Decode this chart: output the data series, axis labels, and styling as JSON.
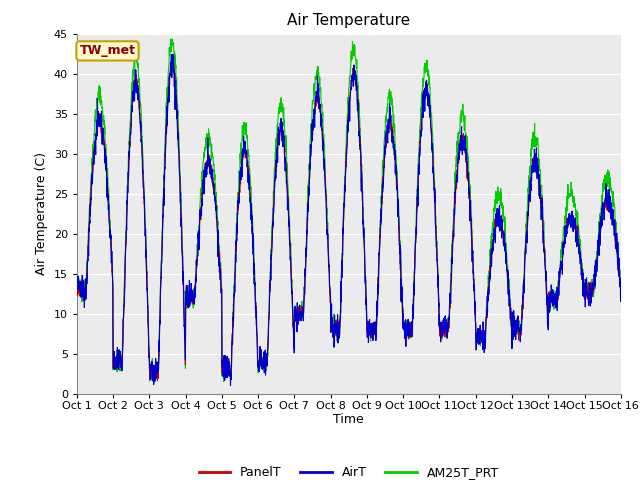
{
  "title": "Air Temperature",
  "xlabel": "Time",
  "ylabel": "Air Temperature (C)",
  "ylim": [
    0,
    45
  ],
  "xlim": [
    0,
    15
  ],
  "annotation_label": "TW_met",
  "annotation_color": "#8B0000",
  "annotation_bg": "#FFFACD",
  "annotation_border": "#C8A000",
  "legend_labels": [
    "PanelT",
    "AirT",
    "AM25T_PRT"
  ],
  "legend_colors": [
    "#CC0000",
    "#0000CC",
    "#00CC00"
  ],
  "tick_labels": [
    "Oct 1",
    "Oct 2",
    "Oct 3",
    "Oct 4",
    "Oct 5",
    "Oct 6",
    "Oct 7",
    "Oct 8",
    "Oct 9",
    "Oct 10",
    "Oct 11",
    "Oct 12",
    "Oct 13",
    "Oct 14",
    "Oct 15",
    "Oct 16"
  ],
  "plot_bg_color": "#EBEBEB",
  "grid_color": "#FFFFFF",
  "num_points_per_day": 144,
  "base_mins": [
    13,
    4,
    3,
    12,
    3,
    4,
    10,
    8,
    8,
    8,
    8,
    7,
    8,
    12,
    13,
    15
  ],
  "base_maxs": [
    34,
    39,
    41,
    29,
    30,
    33,
    37,
    40,
    34,
    38,
    32,
    22,
    29,
    22,
    24,
    18
  ],
  "green_extra": 3,
  "linewidth": 0.8
}
